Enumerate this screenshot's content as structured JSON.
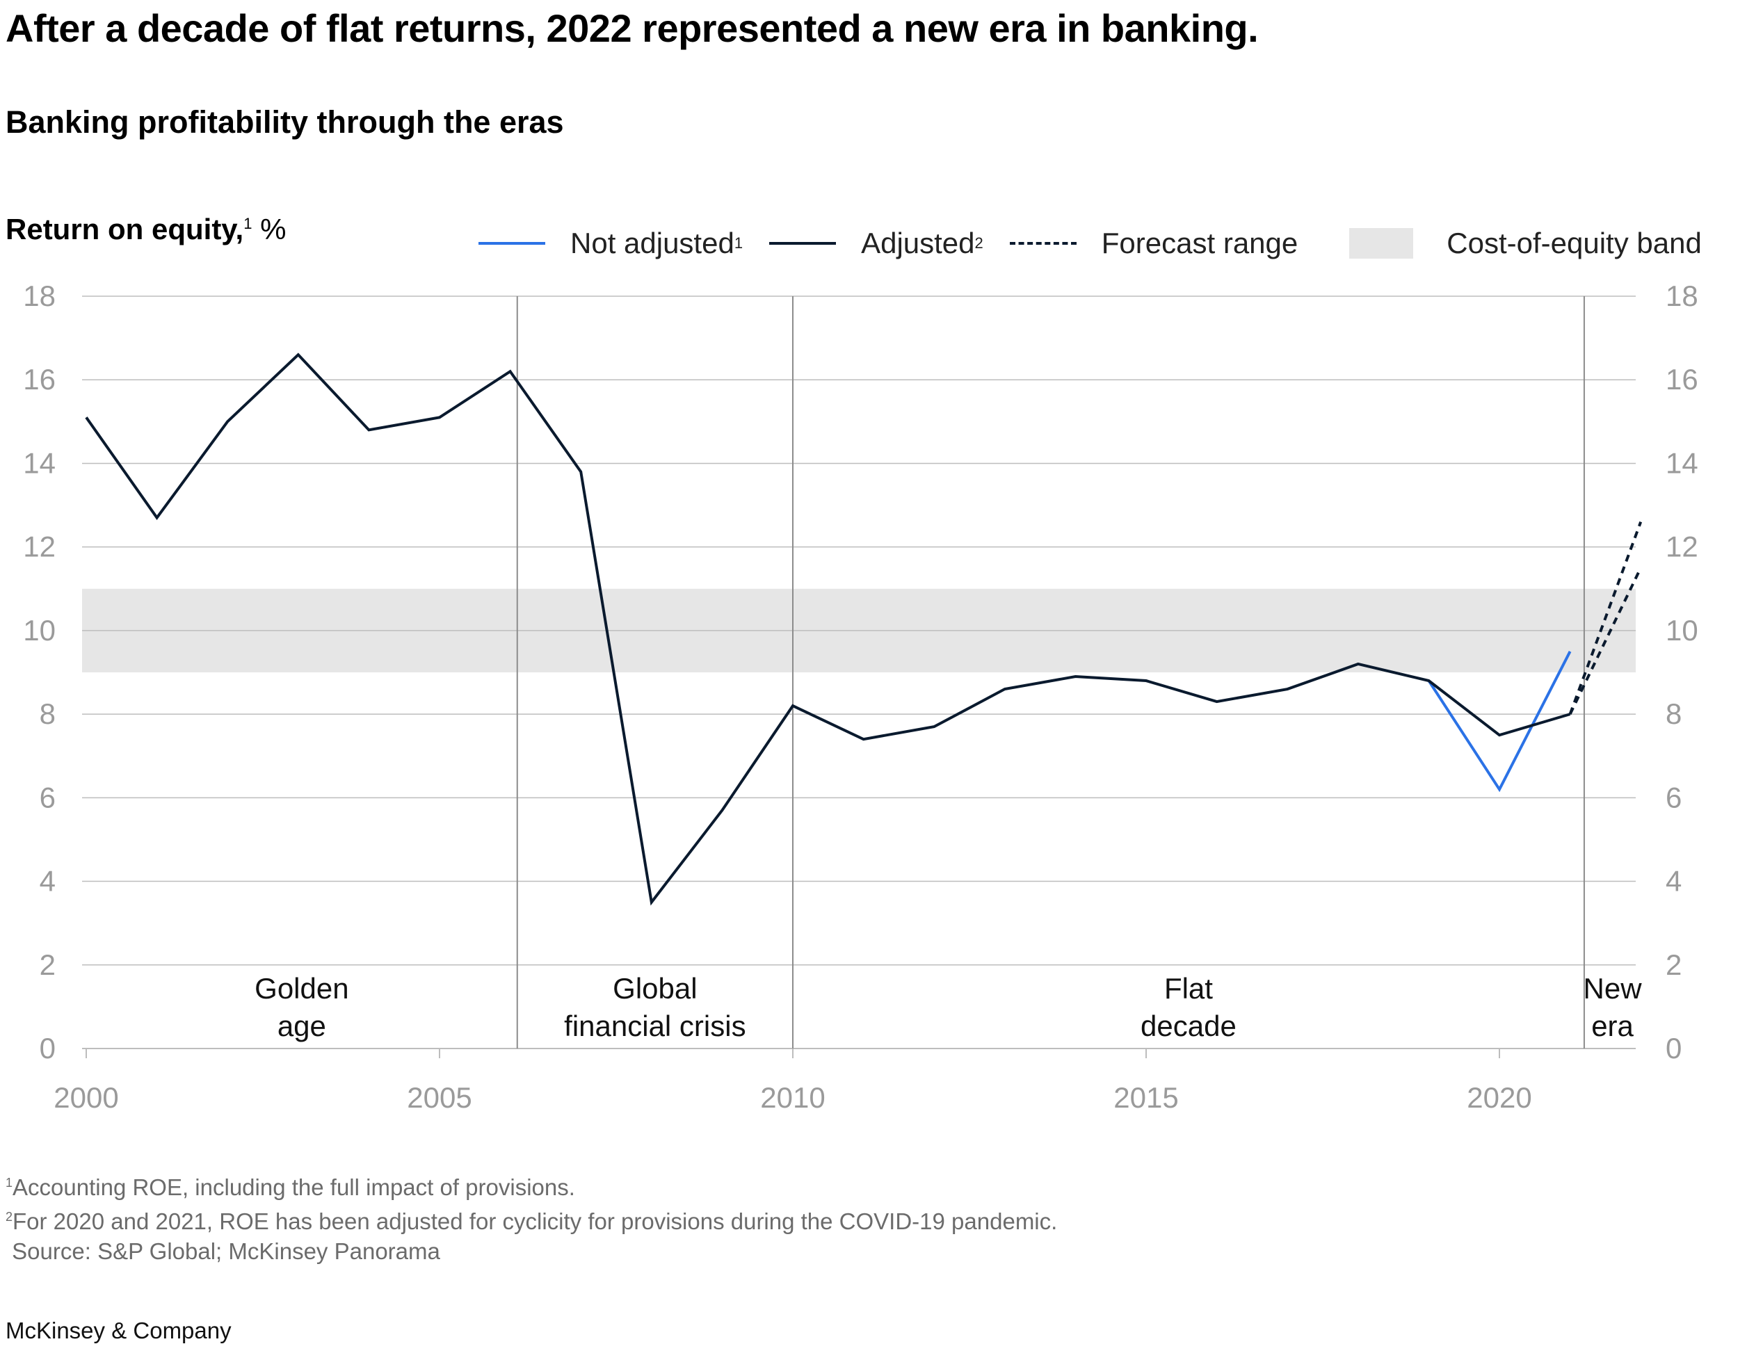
{
  "header": {
    "title": "After a decade of flat returns, 2022 represented a new era in banking.",
    "subtitle": "Banking profitability through the eras"
  },
  "axis": {
    "y_label_bold": "Return on equity,",
    "y_label_sup": "1",
    "y_label_unit": " %"
  },
  "legend": {
    "not_adjusted": "Not adjusted",
    "not_adjusted_sup": "1",
    "adjusted": "Adjusted",
    "adjusted_sup": "2",
    "forecast": "Forecast range",
    "band": "Cost-of-equity band"
  },
  "colors": {
    "adjusted": "#0a1a2e",
    "not_adjusted": "#2b72e6",
    "band": "#e6e6e6",
    "grid": "#bdbdbd",
    "divider": "#8c8c8c"
  },
  "chart_data": {
    "type": "line",
    "ylim": [
      0,
      18
    ],
    "xlim": [
      2000,
      2022
    ],
    "y_ticks": [
      0,
      2,
      4,
      6,
      8,
      10,
      12,
      14,
      16,
      18
    ],
    "x_ticks": [
      2000,
      2005,
      2010,
      2015,
      2020
    ],
    "grid": true,
    "legend_position": "top",
    "cost_of_equity_band": [
      9,
      11
    ],
    "series": [
      {
        "name": "Adjusted",
        "x": [
          2000,
          2001,
          2002,
          2003,
          2004,
          2005,
          2006,
          2007,
          2008,
          2009,
          2010,
          2011,
          2012,
          2013,
          2014,
          2015,
          2016,
          2017,
          2018,
          2019,
          2020,
          2021
        ],
        "values": [
          15.1,
          12.7,
          15.0,
          16.6,
          14.8,
          15.1,
          16.2,
          13.8,
          3.5,
          5.7,
          8.2,
          7.4,
          7.7,
          8.6,
          8.9,
          8.8,
          8.3,
          8.6,
          9.2,
          8.8,
          7.5,
          8.0
        ]
      },
      {
        "name": "Not adjusted",
        "x": [
          2019,
          2020,
          2021
        ],
        "values": [
          8.8,
          6.2,
          9.5
        ]
      },
      {
        "name": "Forecast range",
        "x": [
          2021,
          2022
        ],
        "low": [
          8.0,
          11.5
        ],
        "high": [
          8.0,
          12.6
        ]
      }
    ],
    "eras": [
      {
        "line1": "Golden",
        "line2": "age",
        "start": 2000,
        "end": 2006.1
      },
      {
        "line1": "Global",
        "line2": "financial crisis",
        "start": 2006.1,
        "end": 2010
      },
      {
        "line1": "Flat",
        "line2": "decade",
        "start": 2010,
        "end": 2021.2
      },
      {
        "line1": "New",
        "line2": "era",
        "start": 2021.2,
        "end": 2022
      }
    ],
    "era_dividers": [
      2006.1,
      2010,
      2021.2
    ]
  },
  "footnotes": {
    "note1_sup": "1",
    "note1": "Accounting ROE, including the full impact of provisions.",
    "note2_sup": "2",
    "note2": "For 2020 and 2021, ROE has been adjusted for cyclicity for provisions during the COVID-19 pandemic.",
    "source": " Source: S&P Global; McKinsey Panorama"
  },
  "brand": "McKinsey & Company"
}
